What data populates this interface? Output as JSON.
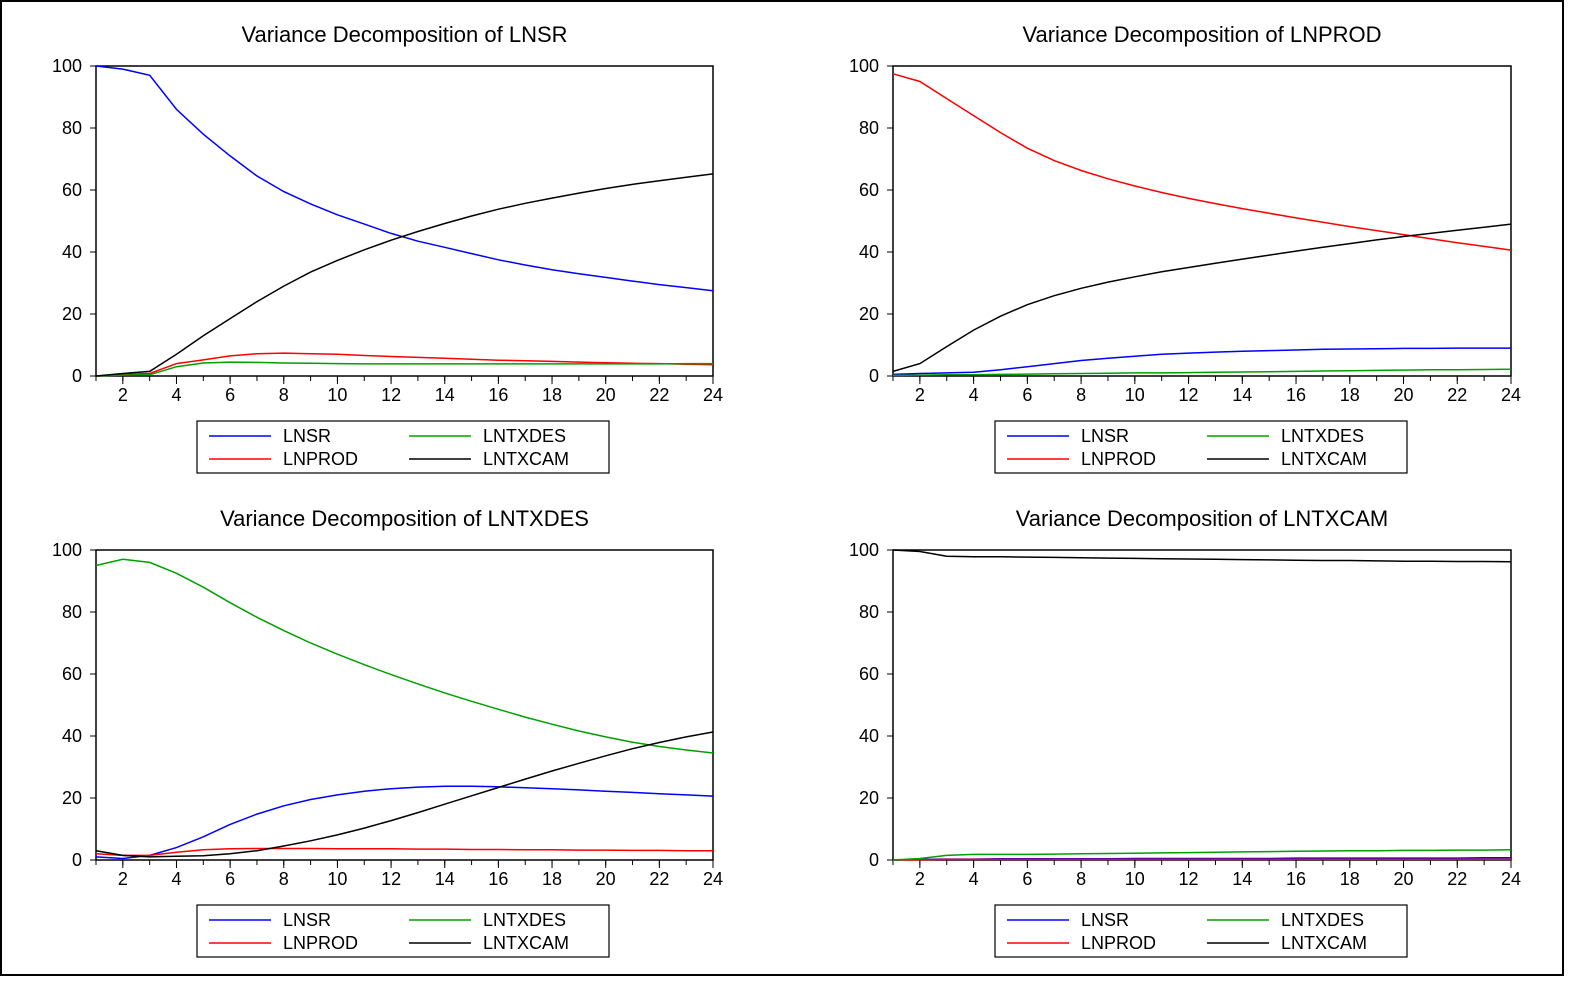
{
  "chart_data": [
    {
      "type": "line",
      "title": "Variance Decomposition of LNSR",
      "xlabel": "",
      "ylabel": "",
      "xlim": [
        1,
        24
      ],
      "ylim": [
        0,
        100
      ],
      "x_ticks": [
        2,
        4,
        6,
        8,
        10,
        12,
        14,
        16,
        18,
        20,
        22,
        24
      ],
      "y_ticks": [
        0,
        20,
        40,
        60,
        80,
        100
      ],
      "grid": false,
      "legend_position": "bottom",
      "x": [
        1,
        2,
        3,
        4,
        5,
        6,
        7,
        8,
        9,
        10,
        11,
        12,
        13,
        14,
        15,
        16,
        17,
        18,
        19,
        20,
        21,
        22,
        23,
        24
      ],
      "series": [
        {
          "name": "LNSR",
          "color": "#0000ff",
          "values": [
            100,
            99,
            97,
            86,
            78,
            71,
            64.5,
            59.5,
            55.5,
            52,
            49,
            46,
            43.5,
            41.5,
            39.5,
            37.5,
            35.8,
            34.3,
            33,
            31.8,
            30.6,
            29.5,
            28.5,
            27.5
          ]
        },
        {
          "name": "LNPROD",
          "color": "#ff0000",
          "values": [
            0,
            0.5,
            0.8,
            4,
            5.2,
            6.5,
            7.2,
            7.4,
            7.2,
            7,
            6.6,
            6.3,
            6,
            5.7,
            5.4,
            5.1,
            4.9,
            4.7,
            4.5,
            4.3,
            4.1,
            4,
            3.8,
            3.6
          ]
        },
        {
          "name": "LNTXDES",
          "color": "#00a000",
          "values": [
            0,
            0.3,
            0.4,
            3,
            4.2,
            4.5,
            4.4,
            4.2,
            4.1,
            4,
            3.9,
            3.9,
            3.9,
            3.9,
            3.9,
            3.9,
            3.9,
            3.9,
            3.9,
            3.9,
            3.9,
            3.9,
            4,
            4
          ]
        },
        {
          "name": "LNTXCAM",
          "color": "#000000",
          "values": [
            0,
            0.8,
            1.5,
            7,
            13,
            18.5,
            24,
            29,
            33.5,
            37.3,
            40.7,
            43.8,
            46.6,
            49.2,
            51.6,
            53.8,
            55.7,
            57.4,
            59,
            60.5,
            61.8,
            63,
            64.1,
            65.2
          ]
        }
      ]
    },
    {
      "type": "line",
      "title": "Variance Decomposition of LNPROD",
      "xlabel": "",
      "ylabel": "",
      "xlim": [
        1,
        24
      ],
      "ylim": [
        0,
        100
      ],
      "x_ticks": [
        2,
        4,
        6,
        8,
        10,
        12,
        14,
        16,
        18,
        20,
        22,
        24
      ],
      "y_ticks": [
        0,
        20,
        40,
        60,
        80,
        100
      ],
      "grid": false,
      "legend_position": "bottom",
      "x": [
        1,
        2,
        3,
        4,
        5,
        6,
        7,
        8,
        9,
        10,
        11,
        12,
        13,
        14,
        15,
        16,
        17,
        18,
        19,
        20,
        21,
        22,
        23,
        24
      ],
      "series": [
        {
          "name": "LNSR",
          "color": "#0000ff",
          "values": [
            0.5,
            0.8,
            1,
            1.2,
            2,
            3,
            4,
            5,
            5.7,
            6.4,
            7,
            7.4,
            7.7,
            8,
            8.2,
            8.4,
            8.6,
            8.7,
            8.8,
            8.9,
            8.9,
            9,
            9,
            9
          ]
        },
        {
          "name": "LNPROD",
          "color": "#ff0000",
          "values": [
            97.5,
            95,
            89.5,
            84,
            78.5,
            73.5,
            69.5,
            66.3,
            63.6,
            61.3,
            59.2,
            57.3,
            55.6,
            54,
            52.5,
            51,
            49.6,
            48.2,
            46.9,
            45.6,
            44.3,
            43,
            41.8,
            40.6
          ]
        },
        {
          "name": "LNTXDES",
          "color": "#00a000",
          "values": [
            0.2,
            0.3,
            0.4,
            0.4,
            0.5,
            0.6,
            0.7,
            0.8,
            0.9,
            1,
            1,
            1.1,
            1.2,
            1.3,
            1.4,
            1.5,
            1.6,
            1.7,
            1.8,
            1.9,
            2,
            2,
            2.1,
            2.2
          ]
        },
        {
          "name": "LNTXCAM",
          "color": "#000000",
          "values": [
            1.5,
            4,
            9.5,
            14.8,
            19.3,
            23,
            25.9,
            28.3,
            30.3,
            32,
            33.6,
            35,
            36.4,
            37.7,
            39,
            40.3,
            41.5,
            42.7,
            43.9,
            45,
            46,
            47,
            48,
            49
          ]
        }
      ]
    },
    {
      "type": "line",
      "title": "Variance Decomposition of LNTXDES",
      "xlabel": "",
      "ylabel": "",
      "xlim": [
        1,
        24
      ],
      "ylim": [
        0,
        100
      ],
      "x_ticks": [
        2,
        4,
        6,
        8,
        10,
        12,
        14,
        16,
        18,
        20,
        22,
        24
      ],
      "y_ticks": [
        0,
        20,
        40,
        60,
        80,
        100
      ],
      "grid": false,
      "legend_position": "bottom",
      "x": [
        1,
        2,
        3,
        4,
        5,
        6,
        7,
        8,
        9,
        10,
        11,
        12,
        13,
        14,
        15,
        16,
        17,
        18,
        19,
        20,
        21,
        22,
        23,
        24
      ],
      "series": [
        {
          "name": "LNSR",
          "color": "#0000ff",
          "values": [
            1,
            0.5,
            1.5,
            4,
            7.5,
            11.5,
            14.8,
            17.5,
            19.5,
            21,
            22.2,
            23,
            23.5,
            23.8,
            23.8,
            23.6,
            23.3,
            23,
            22.6,
            22.2,
            21.8,
            21.4,
            21,
            20.6
          ]
        },
        {
          "name": "LNPROD",
          "color": "#ff0000",
          "values": [
            2,
            1.5,
            1.5,
            2.5,
            3.3,
            3.6,
            3.7,
            3.7,
            3.7,
            3.6,
            3.6,
            3.6,
            3.5,
            3.5,
            3.4,
            3.4,
            3.3,
            3.3,
            3.2,
            3.2,
            3.1,
            3.1,
            3,
            3
          ]
        },
        {
          "name": "LNTXDES",
          "color": "#00a000",
          "values": [
            95,
            97,
            96,
            92.5,
            88,
            83,
            78.3,
            74,
            70,
            66.4,
            63,
            59.8,
            56.8,
            53.9,
            51.2,
            48.6,
            46.1,
            43.8,
            41.6,
            39.7,
            38,
            36.6,
            35.5,
            34.5
          ]
        },
        {
          "name": "LNTXCAM",
          "color": "#000000",
          "values": [
            3,
            1.5,
            1,
            1.2,
            1.4,
            2,
            3,
            4.5,
            6.2,
            8.1,
            10.3,
            12.7,
            15.3,
            18,
            20.7,
            23.4,
            26.1,
            28.7,
            31.2,
            33.6,
            35.9,
            37.9,
            39.7,
            41.3
          ]
        }
      ]
    },
    {
      "type": "line",
      "title": "Variance Decomposition of LNTXCAM",
      "xlabel": "",
      "ylabel": "",
      "xlim": [
        1,
        24
      ],
      "ylim": [
        0,
        100
      ],
      "x_ticks": [
        2,
        4,
        6,
        8,
        10,
        12,
        14,
        16,
        18,
        20,
        22,
        24
      ],
      "y_ticks": [
        0,
        20,
        40,
        60,
        80,
        100
      ],
      "grid": false,
      "legend_position": "bottom",
      "x": [
        1,
        2,
        3,
        4,
        5,
        6,
        7,
        8,
        9,
        10,
        11,
        12,
        13,
        14,
        15,
        16,
        17,
        18,
        19,
        20,
        21,
        22,
        23,
        24
      ],
      "series": [
        {
          "name": "LNSR",
          "color": "#0000ff",
          "values": [
            0,
            0.2,
            0.3,
            0.3,
            0.4,
            0.4,
            0.4,
            0.4,
            0.4,
            0.5,
            0.5,
            0.5,
            0.5,
            0.5,
            0.5,
            0.6,
            0.6,
            0.6,
            0.6,
            0.6,
            0.6,
            0.6,
            0.7,
            0.7
          ]
        },
        {
          "name": "LNPROD",
          "color": "#ff0000",
          "values": [
            0,
            0.1,
            0.2,
            0.2,
            0.2,
            0.2,
            0.2,
            0.2,
            0.2,
            0.2,
            0.2,
            0.2,
            0.2,
            0.2,
            0.2,
            0.2,
            0.2,
            0.2,
            0.2,
            0.2,
            0.2,
            0.2,
            0.2,
            0.2
          ]
        },
        {
          "name": "LNTXDES",
          "color": "#00a000",
          "values": [
            0,
            0.5,
            1.5,
            1.8,
            1.8,
            1.8,
            1.9,
            2,
            2.1,
            2.2,
            2.3,
            2.4,
            2.5,
            2.6,
            2.7,
            2.8,
            2.9,
            3,
            3,
            3.1,
            3.1,
            3.2,
            3.2,
            3.3
          ]
        },
        {
          "name": "LNTXCAM",
          "color": "#000000",
          "values": [
            100,
            99.5,
            98,
            97.8,
            97.8,
            97.7,
            97.6,
            97.5,
            97.4,
            97.3,
            97.2,
            97.1,
            97,
            96.9,
            96.8,
            96.7,
            96.6,
            96.6,
            96.5,
            96.4,
            96.4,
            96.3,
            96.3,
            96.2
          ]
        }
      ]
    }
  ]
}
